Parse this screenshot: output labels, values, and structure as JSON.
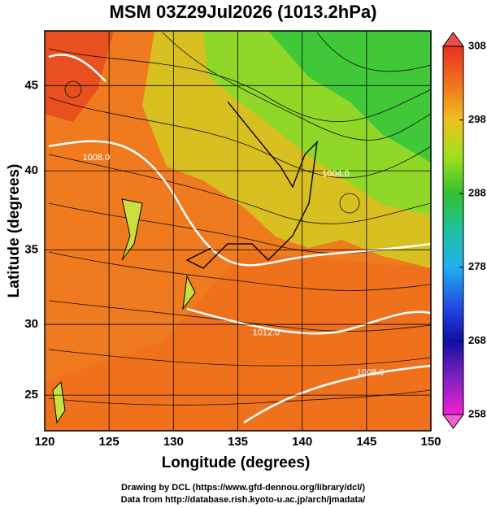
{
  "header": {
    "title": "MSM 03Z29Jul2026 (1013.2hPa)"
  },
  "map": {
    "xlabel": "Longitude (degrees)",
    "ylabel": "Latitude  (degrees)",
    "projection": "mercator",
    "xlim": [
      120,
      150
    ],
    "ylim": [
      22.4,
      48
    ],
    "xticks": [
      120,
      125,
      130,
      135,
      140,
      145,
      150
    ],
    "yticks": [
      25,
      30,
      35,
      40,
      45
    ]
  },
  "colorbar": {
    "lim": [
      258,
      308
    ],
    "ticks": [
      308,
      298,
      288,
      278,
      268,
      258
    ]
  },
  "contour_labels": [
    {
      "text": "1012.0",
      "lon": 137.2,
      "lat": 29.4
    },
    {
      "text": "1008.0",
      "lon": 124.0,
      "lat": 40.8
    },
    {
      "text": "1004.0",
      "lon": 142.6,
      "lat": 39.8
    },
    {
      "text": "1008.0",
      "lon": 145.3,
      "lat": 26.6
    }
  ],
  "footer": {
    "line1": "Drawing by DCL (https://www.gfd-dennou.org/library/dcl/)",
    "line2": "Data from http://database.rish.kyoto-u.ac.jp/arch/jmadata/"
  }
}
